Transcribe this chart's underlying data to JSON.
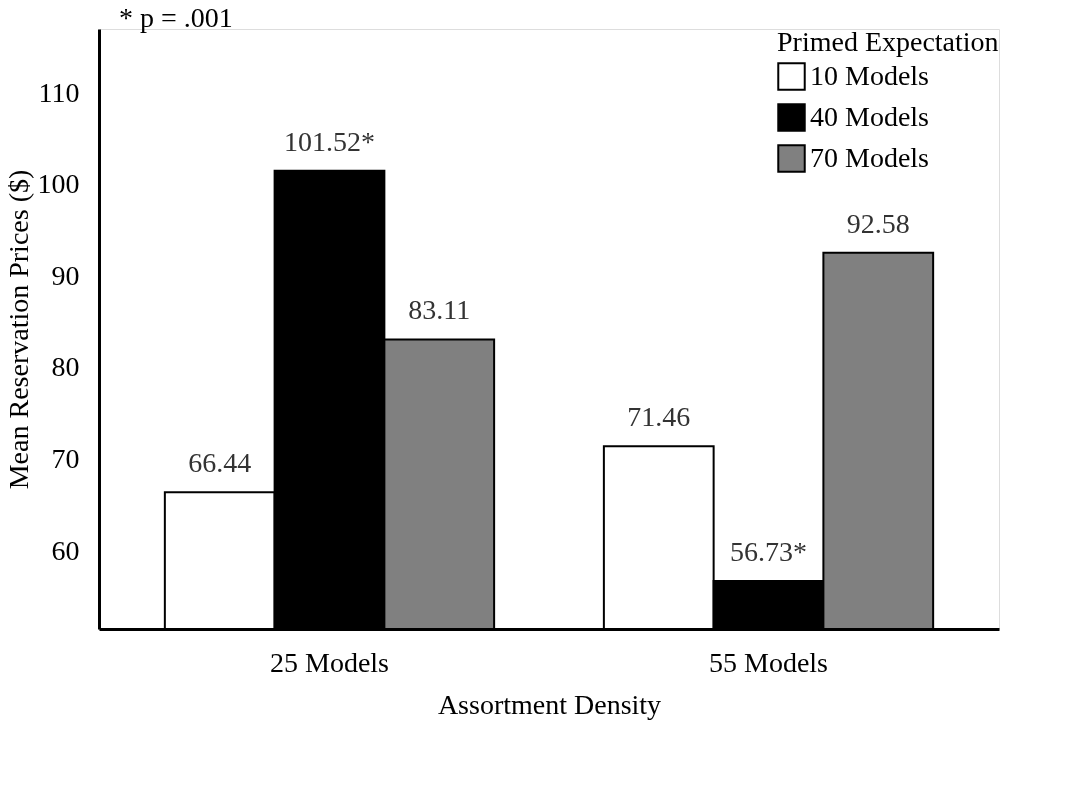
{
  "chart_data": {
    "type": "bar",
    "xlabel": "Assortment Density",
    "ylabel": "Mean Reservation Prices ($)",
    "legend_title": "Primed Expectation",
    "categories": [
      "25 Models",
      "55 Models"
    ],
    "series": [
      {
        "name": "10 Models",
        "color": "#ffffff",
        "values": [
          66.44,
          71.46
        ],
        "value_labels": [
          "66.44",
          "71.46"
        ]
      },
      {
        "name": "40 Models",
        "color": "#000000",
        "values": [
          101.52,
          56.73
        ],
        "value_labels": [
          "101.52*",
          "56.73*"
        ]
      },
      {
        "name": "70 Models",
        "color": "#808080",
        "values": [
          83.11,
          92.58
        ],
        "value_labels": [
          "83.11",
          "92.58"
        ]
      }
    ],
    "ylim": [
      51.5,
      117
    ],
    "yticks": [
      60,
      70,
      80,
      90,
      100,
      110
    ],
    "grid": false,
    "legend": "top right",
    "annotations": [
      "* p = .001"
    ]
  }
}
